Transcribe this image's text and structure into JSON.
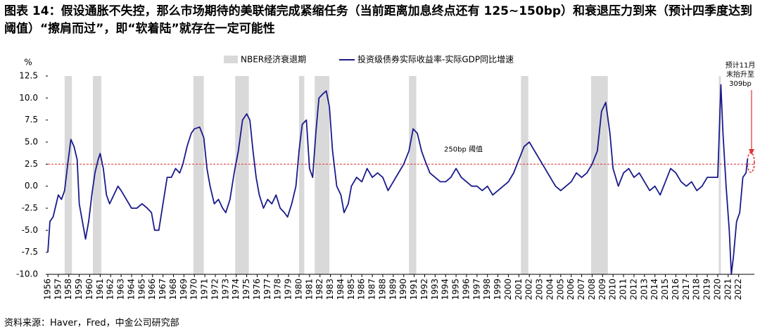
{
  "chart_data": {
    "type": "line",
    "title": "图表 14：假设通胀不失控，那么市场期待的美联储完成紧缩任务（当前距离加息终点还有 125~150bp）和衰退压力到来（预计四季度达到阈值）“擦肩而过”，即“软着陆”就存在一定可能性",
    "source": "资料来源：Haver，Fred，中金公司研究部",
    "ylabel": "%",
    "ylim": [
      -10,
      12.5
    ],
    "yticks": [
      12.5,
      {
        "value": 10,
        "label": "10.0"
      },
      7.5,
      {
        "value": 5,
        "label": "5.0"
      },
      2.5,
      {
        "value": 0,
        "label": "0.0"
      },
      -2.5,
      {
        "value": -5,
        "label": "-5.0"
      },
      -7.5,
      {
        "value": -10,
        "label": "-10.0"
      }
    ],
    "xlim": [
      1956,
      2023.5
    ],
    "xticks": [
      1956,
      1957,
      1958,
      1959,
      1960,
      1961,
      1962,
      1963,
      1964,
      1965,
      1966,
      1967,
      1968,
      1969,
      1970,
      1971,
      1972,
      1973,
      1974,
      1975,
      1976,
      1977,
      1978,
      1979,
      1980,
      1981,
      1982,
      1983,
      1984,
      1985,
      1986,
      1987,
      1988,
      1989,
      1990,
      1991,
      1992,
      1993,
      1994,
      1995,
      1996,
      1997,
      1998,
      1999,
      2000,
      2001,
      2002,
      2003,
      2004,
      2005,
      2006,
      2007,
      2008,
      2009,
      2010,
      2011,
      2012,
      2013,
      2014,
      2015,
      2016,
      2017,
      2018,
      2019,
      2020,
      2021,
      2022
    ],
    "recessions": {
      "name": "NBER经济衰退期",
      "color": "#d9d9d9",
      "periods": [
        [
          1957.6,
          1958.3
        ],
        [
          1960.3,
          1961.1
        ],
        [
          1969.9,
          1970.9
        ],
        [
          1973.9,
          1975.2
        ],
        [
          1980.0,
          1980.5
        ],
        [
          1981.5,
          1982.9
        ],
        [
          1990.5,
          1991.2
        ],
        [
          2001.2,
          2001.9
        ],
        [
          2007.9,
          2009.5
        ],
        [
          2020.1,
          2020.3
        ]
      ]
    },
    "threshold": 2.5,
    "threshold_color": "#e03030",
    "annotations": {
      "threshold": "250bp 阈值",
      "forecast": [
        "预计11月",
        "末抬升至",
        "309bp"
      ]
    },
    "series": [
      {
        "name": "投资级债券实际收益率-实际GDP同比增速",
        "color": "#1a1a8c",
        "x": [
          1956.0,
          1956.2,
          1956.5,
          1956.8,
          1957.0,
          1957.3,
          1957.6,
          1957.9,
          1958.2,
          1958.5,
          1958.8,
          1959.0,
          1959.3,
          1959.6,
          1959.9,
          1960.2,
          1960.5,
          1960.8,
          1961.0,
          1961.3,
          1961.6,
          1961.9,
          1962.3,
          1962.7,
          1963.0,
          1963.5,
          1964.0,
          1964.5,
          1965.0,
          1965.5,
          1965.9,
          1966.2,
          1966.6,
          1967.0,
          1967.4,
          1967.8,
          1968.2,
          1968.6,
          1968.9,
          1969.3,
          1969.7,
          1970.0,
          1970.5,
          1970.9,
          1971.2,
          1971.5,
          1971.9,
          1972.3,
          1972.7,
          1973.0,
          1973.4,
          1973.8,
          1974.2,
          1974.6,
          1975.0,
          1975.3,
          1975.6,
          1975.9,
          1976.2,
          1976.6,
          1977.0,
          1977.4,
          1977.8,
          1978.2,
          1978.6,
          1978.9,
          1979.3,
          1979.7,
          1980.0,
          1980.3,
          1980.7,
          1981.0,
          1981.3,
          1981.6,
          1981.9,
          1982.3,
          1982.6,
          1982.9,
          1983.2,
          1983.6,
          1984.0,
          1984.3,
          1984.7,
          1985.0,
          1985.5,
          1986.0,
          1986.5,
          1987.0,
          1987.5,
          1988.0,
          1988.5,
          1989.0,
          1989.5,
          1990.0,
          1990.5,
          1990.9,
          1991.3,
          1991.7,
          1992.0,
          1992.5,
          1993.0,
          1993.5,
          1994.0,
          1994.5,
          1995.0,
          1995.5,
          1996.0,
          1996.5,
          1997.0,
          1997.5,
          1998.0,
          1998.5,
          1999.0,
          1999.5,
          2000.0,
          2000.5,
          2001.0,
          2001.5,
          2002.0,
          2002.5,
          2003.0,
          2003.5,
          2004.0,
          2004.5,
          2005.0,
          2005.5,
          2006.0,
          2006.5,
          2007.0,
          2007.5,
          2008.0,
          2008.5,
          2008.9,
          2009.3,
          2009.7,
          2010.0,
          2010.5,
          2011.0,
          2011.5,
          2012.0,
          2012.5,
          2013.0,
          2013.5,
          2014.0,
          2014.5,
          2015.0,
          2015.5,
          2016.0,
          2016.5,
          2017.0,
          2017.5,
          2018.0,
          2018.5,
          2019.0,
          2019.5,
          2020.0,
          2020.3,
          2020.5,
          2020.8,
          2021.1,
          2021.3,
          2021.5,
          2021.8,
          2022.1,
          2022.4,
          2022.7,
          2022.85
        ],
        "values": [
          -7.5,
          -4,
          -3.5,
          -2,
          -1,
          -1.5,
          -0.5,
          2.5,
          5.3,
          4.5,
          3,
          -2,
          -4,
          -6,
          -4,
          -1,
          1.5,
          3,
          3.7,
          2,
          -1,
          -2,
          -1,
          0,
          -0.5,
          -1.5,
          -2.5,
          -2.5,
          -2,
          -2.5,
          -3,
          -5,
          -5,
          -2,
          1,
          1,
          2,
          1.5,
          2.5,
          4.5,
          6,
          6.5,
          6.7,
          5.5,
          2,
          0,
          -2,
          -1.5,
          -2.5,
          -3,
          -1.5,
          1.5,
          4,
          7.5,
          8.2,
          7.5,
          4,
          1,
          -1,
          -2.5,
          -1.5,
          -2,
          -1,
          -2.5,
          -3,
          -3.5,
          -2,
          0,
          4,
          7,
          7.5,
          2,
          1,
          6,
          10,
          10.5,
          10.8,
          9,
          4,
          0,
          -1,
          -3,
          -2,
          0,
          1,
          0.5,
          2,
          1,
          1.5,
          1,
          -0.5,
          0.5,
          1.5,
          2.5,
          4,
          6.5,
          6,
          4,
          3,
          1.5,
          1,
          0.5,
          0.5,
          1,
          2,
          1,
          0.5,
          0,
          0,
          -0.5,
          0,
          -1,
          -0.5,
          0,
          0.5,
          1.5,
          3,
          4.5,
          5,
          4,
          3,
          2,
          1,
          0,
          -0.5,
          0,
          0.5,
          1.5,
          1,
          1.5,
          2.5,
          4,
          8.5,
          9.5,
          6,
          2,
          0,
          1.5,
          2,
          1,
          1.5,
          0.5,
          -0.5,
          0,
          -1,
          0.5,
          2,
          1.5,
          0.5,
          0,
          0.5,
          -0.5,
          0,
          1,
          1,
          1,
          11.5,
          6,
          0,
          -5,
          -10,
          -8,
          -4,
          -3,
          1,
          1.5,
          3.09
        ]
      }
    ]
  }
}
